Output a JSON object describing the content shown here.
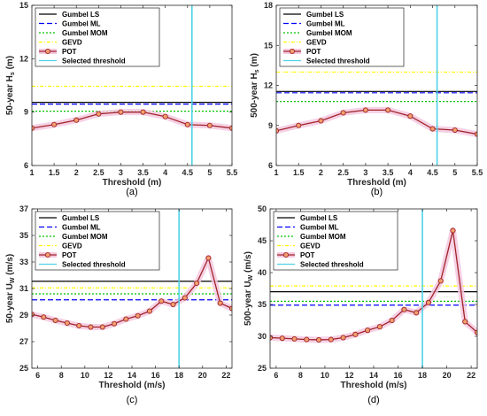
{
  "chart_data": [
    {
      "type": "line",
      "caption": "(a)",
      "xlabel": "Threshold (m)",
      "ylabel": "50-year H",
      "ylabel_sub": "s",
      "ylabel_unit": " (m)",
      "xlim": [
        1,
        5.5
      ],
      "ylim": [
        6,
        15
      ],
      "xticks": [
        1,
        1.5,
        2,
        2.5,
        3,
        3.5,
        4,
        4.5,
        5,
        5.5
      ],
      "yticks": [
        6,
        9,
        12,
        15
      ],
      "grid": false,
      "legend_position": "top-left",
      "series": [
        {
          "name": "Gumbel LS",
          "kind": "hline",
          "y": 9.55,
          "color": "#000000"
        },
        {
          "name": "Gumbel ML",
          "kind": "hline",
          "y": 9.45,
          "color": "#0000ff"
        },
        {
          "name": "Gumbel MOM",
          "kind": "hline",
          "y": 9.05,
          "color": "#00c000"
        },
        {
          "name": "GEVD",
          "kind": "hline",
          "y": 10.45,
          "color": "#ffff00"
        },
        {
          "name": "POT",
          "kind": "line",
          "color": "#a0242a",
          "marker_fill": "#f1a06e",
          "x": [
            1,
            1.5,
            2,
            2.5,
            3,
            3.5,
            4,
            4.5,
            5,
            5.5
          ],
          "y": [
            8.1,
            8.3,
            8.55,
            8.9,
            9.0,
            9.0,
            8.75,
            8.3,
            8.25,
            8.1
          ]
        },
        {
          "name": "Selected threshold",
          "kind": "vline",
          "x": 4.6,
          "color": "#4fd2e6"
        }
      ]
    },
    {
      "type": "line",
      "caption": "(b)",
      "xlabel": "Threshold (m)",
      "ylabel": "500-year H",
      "ylabel_sub": "s",
      "ylabel_unit": " (m)",
      "xlim": [
        1,
        5.5
      ],
      "ylim": [
        6,
        18
      ],
      "xticks": [
        1,
        1.5,
        2,
        2.5,
        3,
        3.5,
        4,
        4.5,
        5,
        5.5
      ],
      "yticks": [
        6,
        9,
        12,
        15,
        18
      ],
      "grid": false,
      "legend_position": "top-left",
      "series": [
        {
          "name": "Gumbel LS",
          "kind": "hline",
          "y": 11.55,
          "color": "#000000"
        },
        {
          "name": "Gumbel ML",
          "kind": "hline",
          "y": 11.45,
          "color": "#0000ff"
        },
        {
          "name": "Gumbel MOM",
          "kind": "hline",
          "y": 10.8,
          "color": "#00c000"
        },
        {
          "name": "GEVD",
          "kind": "hline",
          "y": 13.0,
          "color": "#ffff00"
        },
        {
          "name": "POT",
          "kind": "line",
          "color": "#a0242a",
          "marker_fill": "#f1a06e",
          "x": [
            1,
            1.5,
            2,
            2.5,
            3,
            3.5,
            4,
            4.5,
            5,
            5.5
          ],
          "y": [
            8.6,
            9.0,
            9.35,
            9.95,
            10.15,
            10.15,
            9.7,
            8.75,
            8.65,
            8.35
          ]
        },
        {
          "name": "Selected threshold",
          "kind": "vline",
          "x": 4.6,
          "color": "#4fd2e6"
        }
      ]
    },
    {
      "type": "line",
      "caption": "(c)",
      "xlabel": "Threshold (m/s)",
      "ylabel": "50-year U",
      "ylabel_sub": "W",
      "ylabel_unit": " (m/s)",
      "xlim": [
        5.5,
        22.5
      ],
      "ylim": [
        25,
        37
      ],
      "xticks": [
        6,
        8,
        10,
        12,
        14,
        16,
        18,
        20,
        22
      ],
      "yticks": [
        25,
        27,
        29,
        31,
        33,
        35,
        37
      ],
      "grid": false,
      "legend_position": "top-left",
      "series": [
        {
          "name": "Gumbel LS",
          "kind": "hline",
          "y": 31.55,
          "color": "#000000"
        },
        {
          "name": "Gumbel ML",
          "kind": "hline",
          "y": 30.15,
          "color": "#0000ff"
        },
        {
          "name": "Gumbel MOM",
          "kind": "hline",
          "y": 30.6,
          "color": "#00c000"
        },
        {
          "name": "GEVD",
          "kind": "hline",
          "y": 31.05,
          "color": "#ffff00"
        },
        {
          "name": "POT",
          "kind": "line",
          "color": "#a0242a",
          "marker_fill": "#f1a06e",
          "x": [
            5.5,
            6.5,
            7.5,
            8.5,
            9.5,
            10.5,
            11.5,
            12.5,
            13.5,
            14.5,
            15.5,
            16.5,
            17.5,
            18.5,
            19.5,
            20.5,
            21.5,
            22.5
          ],
          "y": [
            29.05,
            28.85,
            28.6,
            28.4,
            28.2,
            28.1,
            28.1,
            28.35,
            28.7,
            28.95,
            29.3,
            30.05,
            29.8,
            30.3,
            31.4,
            33.3,
            29.9,
            29.5
          ]
        },
        {
          "name": "Selected threshold",
          "kind": "vline",
          "x": 18.0,
          "color": "#4fd2e6"
        }
      ]
    },
    {
      "type": "line",
      "caption": "(d)",
      "xlabel": "Threshold (m/s)",
      "ylabel": "500-year U",
      "ylabel_sub": "W",
      "ylabel_unit": " (m/s)",
      "xlim": [
        5.5,
        22.5
      ],
      "ylim": [
        25,
        50
      ],
      "xticks": [
        6,
        8,
        10,
        12,
        14,
        16,
        18,
        20,
        22
      ],
      "yticks": [
        25,
        30,
        35,
        40,
        45,
        50
      ],
      "grid": false,
      "legend_position": "top-left",
      "series": [
        {
          "name": "Gumbel LS",
          "kind": "hline",
          "y": 37.0,
          "color": "#000000"
        },
        {
          "name": "Gumbel ML",
          "kind": "hline",
          "y": 34.9,
          "color": "#0000ff"
        },
        {
          "name": "Gumbel MOM",
          "kind": "hline",
          "y": 35.5,
          "color": "#00c000"
        },
        {
          "name": "GEVD",
          "kind": "hline",
          "y": 37.9,
          "color": "#ffff00"
        },
        {
          "name": "POT",
          "kind": "line",
          "color": "#a0242a",
          "marker_fill": "#f1a06e",
          "x": [
            5.5,
            6.5,
            7.5,
            8.5,
            9.5,
            10.5,
            11.5,
            12.5,
            13.5,
            14.5,
            15.5,
            16.5,
            17.5,
            18.5,
            19.5,
            20.5,
            21.5,
            22.5
          ],
          "y": [
            29.8,
            29.7,
            29.6,
            29.5,
            29.45,
            29.5,
            29.8,
            30.3,
            30.95,
            31.5,
            32.5,
            34.2,
            33.7,
            35.3,
            38.7,
            46.6,
            32.3,
            30.6
          ]
        },
        {
          "name": "Selected threshold",
          "kind": "vline",
          "x": 18.0,
          "color": "#4fd2e6"
        }
      ]
    }
  ]
}
